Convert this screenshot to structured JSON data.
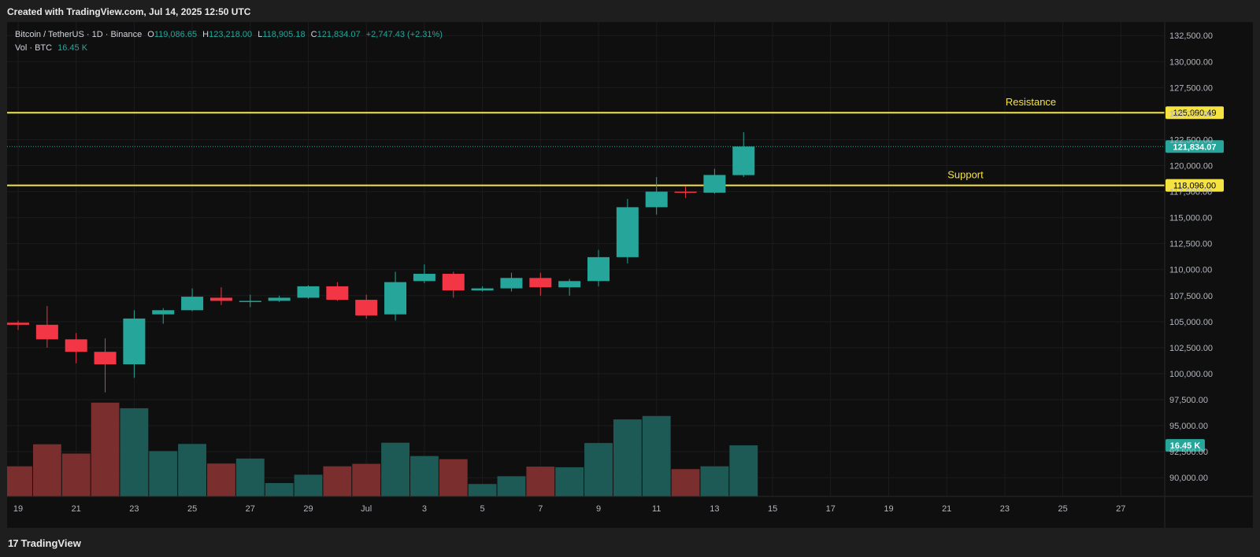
{
  "header": {
    "created_text": "Created with TradingView.com, Jul 14, 2025 12:50 UTC"
  },
  "legend": {
    "symbol": "Bitcoin / TetherUS · 1D · Binance",
    "o_label": "O",
    "o_value": "119,086.65",
    "h_label": "H",
    "h_value": "123,218.00",
    "l_label": "L",
    "l_value": "118,905.18",
    "c_label": "C",
    "c_value": "121,834.07",
    "change": "+2,747.43 (+2.31%)",
    "vol_label": "Vol · BTC",
    "vol_value": "16.45 K"
  },
  "footer": {
    "logo_text": "TradingView",
    "logo_mark": "17"
  },
  "colors": {
    "up": "#26a69a",
    "down": "#f23645",
    "vol_up": "#1e5a55",
    "vol_down": "#7a2e2e",
    "level": "#f5e342",
    "background": "#0f0f0f"
  },
  "chart_data": {
    "type": "candlestick",
    "symbol": "Bitcoin / TetherUS",
    "interval": "1D",
    "exchange": "Binance",
    "y_range": [
      88200,
      133500
    ],
    "y_ticks": [
      "90,000.00",
      "92,500.00",
      "95,000.00",
      "97,500.00",
      "100,000.00",
      "102,500.00",
      "105,000.00",
      "107,500.00",
      "110,000.00",
      "112,500.00",
      "115,000.00",
      "117,500.00",
      "120,000.00",
      "122,500.00",
      "125,000.00",
      "127,500.00",
      "130,000.00",
      "132,500.00"
    ],
    "x_ticks": [
      "19",
      "21",
      "23",
      "25",
      "27",
      "29",
      "Jul",
      "3",
      "5",
      "7",
      "9",
      "11",
      "13",
      "15",
      "17",
      "19",
      "21",
      "23",
      "25",
      "27"
    ],
    "candles": [
      {
        "date": "Jun 19",
        "o": 104900,
        "h": 105100,
        "l": 104200,
        "c": 104700
      },
      {
        "date": "Jun 20",
        "o": 104700,
        "h": 106500,
        "l": 102500,
        "c": 103300
      },
      {
        "date": "Jun 21",
        "o": 103300,
        "h": 103900,
        "l": 101000,
        "c": 102100
      },
      {
        "date": "Jun 22",
        "o": 102100,
        "h": 103400,
        "l": 98200,
        "c": 100900
      },
      {
        "date": "Jun 23",
        "o": 100900,
        "h": 106100,
        "l": 99600,
        "c": 105300
      },
      {
        "date": "Jun 24",
        "o": 105700,
        "h": 106300,
        "l": 104800,
        "c": 106100
      },
      {
        "date": "Jun 25",
        "o": 106100,
        "h": 108200,
        "l": 106000,
        "c": 107400
      },
      {
        "date": "Jun 26",
        "o": 107300,
        "h": 108300,
        "l": 106600,
        "c": 107000
      },
      {
        "date": "Jun 27",
        "o": 106900,
        "h": 107600,
        "l": 106400,
        "c": 107000
      },
      {
        "date": "Jun 28",
        "o": 107000,
        "h": 107500,
        "l": 106900,
        "c": 107300
      },
      {
        "date": "Jun 29",
        "o": 107300,
        "h": 108500,
        "l": 107200,
        "c": 108400
      },
      {
        "date": "Jun 30",
        "o": 108400,
        "h": 108800,
        "l": 107000,
        "c": 107100
      },
      {
        "date": "Jul 1",
        "o": 107100,
        "h": 107600,
        "l": 105300,
        "c": 105600
      },
      {
        "date": "Jul 2",
        "o": 105700,
        "h": 109800,
        "l": 105100,
        "c": 108800
      },
      {
        "date": "Jul 3",
        "o": 108900,
        "h": 110500,
        "l": 108700,
        "c": 109600
      },
      {
        "date": "Jul 4",
        "o": 109600,
        "h": 109800,
        "l": 107300,
        "c": 108000
      },
      {
        "date": "Jul 5",
        "o": 108000,
        "h": 108400,
        "l": 107900,
        "c": 108200
      },
      {
        "date": "Jul 6",
        "o": 108200,
        "h": 109700,
        "l": 107900,
        "c": 109200
      },
      {
        "date": "Jul 7",
        "o": 109200,
        "h": 109700,
        "l": 107500,
        "c": 108300
      },
      {
        "date": "Jul 8",
        "o": 108300,
        "h": 109100,
        "l": 107500,
        "c": 108900
      },
      {
        "date": "Jul 9",
        "o": 108900,
        "h": 111900,
        "l": 108400,
        "c": 111200
      },
      {
        "date": "Jul 10",
        "o": 111200,
        "h": 116800,
        "l": 110600,
        "c": 116000
      },
      {
        "date": "Jul 11",
        "o": 116000,
        "h": 118900,
        "l": 115300,
        "c": 117500
      },
      {
        "date": "Jul 12",
        "o": 117500,
        "h": 118000,
        "l": 116900,
        "c": 117400
      },
      {
        "date": "Jul 13",
        "o": 117400,
        "h": 119700,
        "l": 117300,
        "c": 119100
      },
      {
        "date": "Jul 14",
        "o": 119086.65,
        "h": 123218,
        "l": 118905.18,
        "c": 121834.07
      }
    ],
    "volume": [
      9.7,
      16.8,
      13.8,
      30.2,
      28.4,
      14.6,
      16.9,
      10.6,
      12.2,
      4.3,
      7.0,
      9.7,
      10.5,
      17.3,
      13.0,
      12.0,
      4.0,
      6.5,
      9.6,
      9.4,
      17.2,
      24.8,
      25.9,
      8.8,
      9.7,
      16.45
    ],
    "volume_max": 38,
    "current_price": "121,834.07",
    "current_price_value": 121834.07,
    "current_volume_label": "16.45 K",
    "levels": [
      {
        "name": "Resistance",
        "value": 125090.49,
        "label": "125,090.49"
      },
      {
        "name": "Support",
        "value": 118096.0,
        "label": "118,096.00"
      }
    ]
  }
}
